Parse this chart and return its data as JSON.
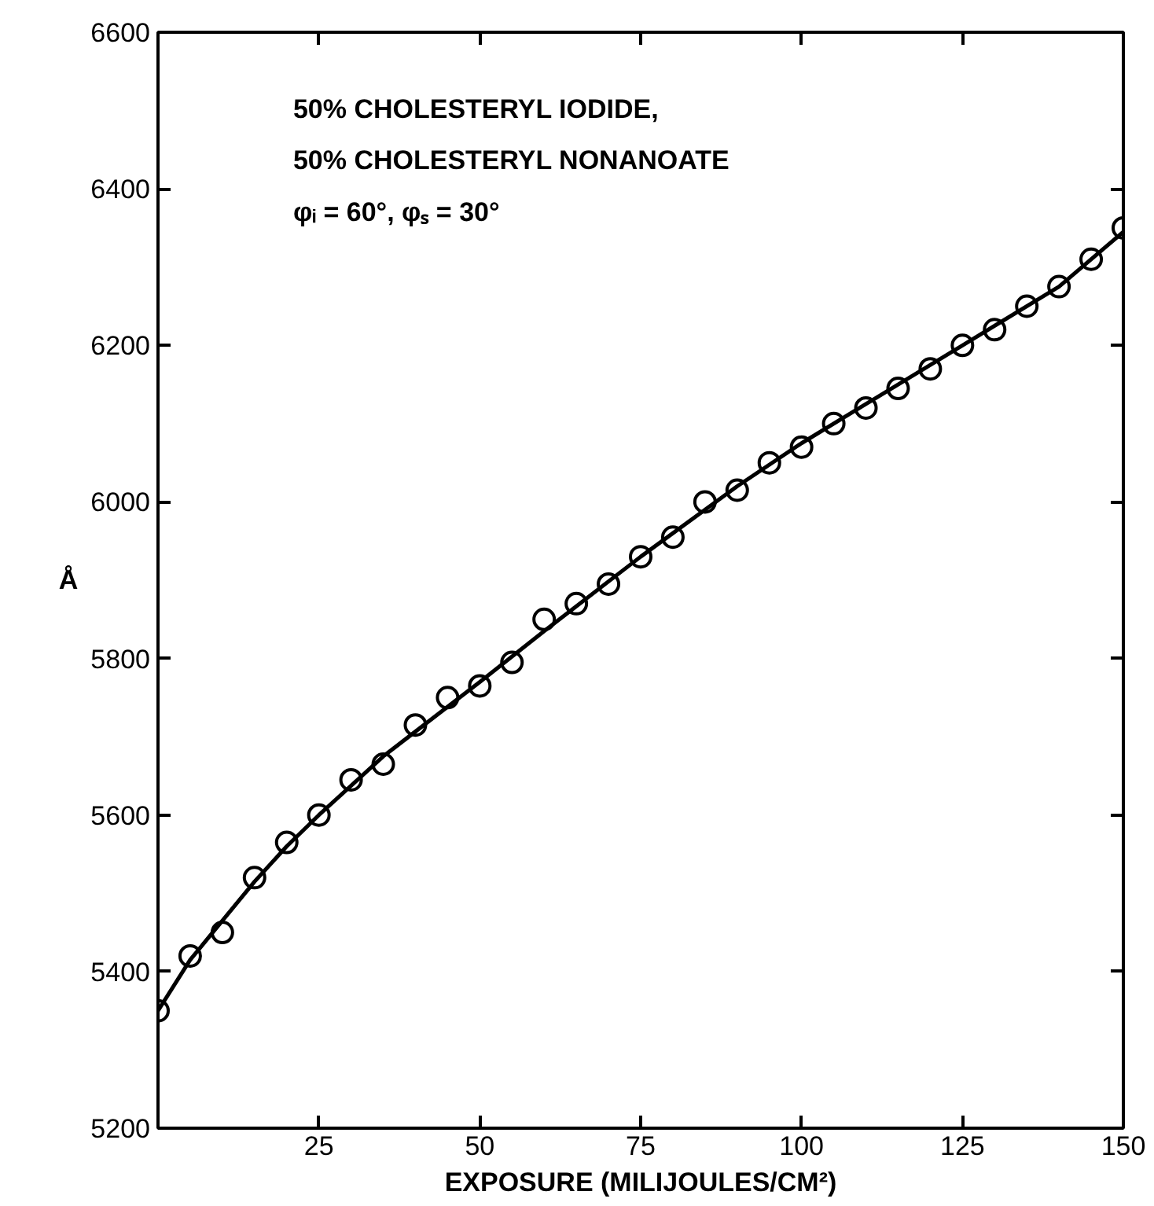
{
  "chart_data": {
    "type": "scatter",
    "xlabel": "EXPOSURE (MILIJOULES/CM²)",
    "ylabel": "Å",
    "annotations": [
      "50% CHOLESTERYL IODIDE,",
      "50% CHOLESTERYL NONANOATE",
      "φᵢ = 60°, φₛ = 30°"
    ],
    "xlim": [
      0,
      150
    ],
    "ylim": [
      5200,
      6600
    ],
    "xticks": [
      25,
      50,
      75,
      100,
      125,
      150
    ],
    "yticks": [
      5200,
      5400,
      5600,
      5800,
      6000,
      6200,
      6400,
      6600
    ],
    "grid": false,
    "series": [
      {
        "marker": "circle",
        "color": "#000000",
        "x": [
          0,
          5,
          10,
          15,
          20,
          25,
          30,
          35,
          40,
          45,
          50,
          55,
          60,
          65,
          70,
          75,
          80,
          85,
          90,
          95,
          100,
          105,
          110,
          115,
          120,
          125,
          130,
          135,
          140,
          145,
          150
        ],
        "values": [
          5350,
          5420,
          5450,
          5520,
          5565,
          5600,
          5645,
          5665,
          5715,
          5750,
          5765,
          5795,
          5850,
          5870,
          5895,
          5930,
          5955,
          6000,
          6015,
          6050,
          6070,
          6100,
          6120,
          6145,
          6170,
          6200,
          6220,
          6250,
          6275,
          6310,
          6350
        ]
      },
      {
        "type": "line",
        "marker": "none",
        "line_style": "solid",
        "color": "#000000",
        "x": [
          0,
          5,
          10,
          15,
          20,
          25,
          35,
          50,
          60,
          75,
          90,
          100,
          110,
          125,
          140,
          150
        ],
        "values": [
          5350,
          5415,
          5465,
          5515,
          5560,
          5600,
          5675,
          5770,
          5835,
          5930,
          6020,
          6075,
          6125,
          6200,
          6275,
          6345
        ]
      }
    ]
  }
}
